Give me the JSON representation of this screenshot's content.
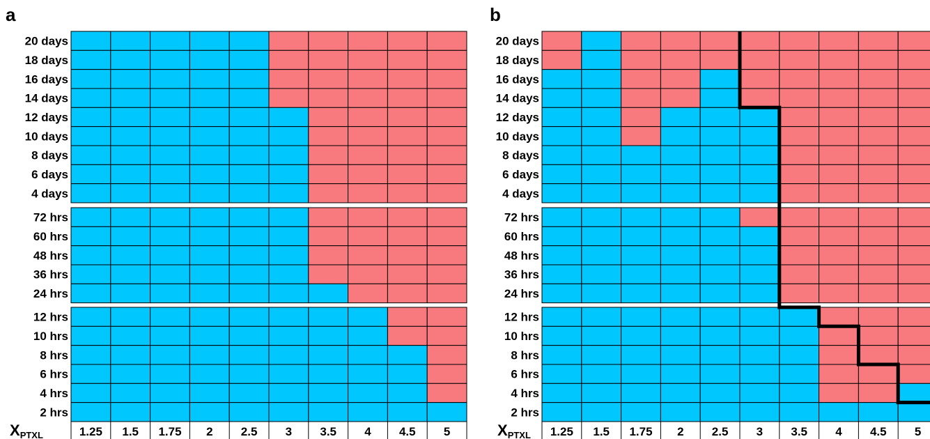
{
  "chart_data": [
    {
      "type": "heatmap",
      "panel": "a",
      "x_label_main": "X",
      "x_label_sub": "PTXL",
      "columns": [
        "1.25",
        "1.5",
        "1.75",
        "2",
        "2.5",
        "3",
        "3.5",
        "4",
        "4.5",
        "5"
      ],
      "row_groups": [
        {
          "rows": [
            "20 days",
            "18 days",
            "16 days",
            "14 days",
            "12 days",
            "10 days",
            "8 days",
            "6 days",
            "4 days"
          ]
        },
        {
          "rows": [
            "72 hrs",
            "60 hrs",
            "48 hrs",
            "36 hrs",
            "24 hrs"
          ]
        },
        {
          "rows": [
            "12 hrs",
            "10 hrs",
            "8 hrs",
            "6 hrs",
            "4 hrs",
            "2 hrs"
          ]
        }
      ],
      "category_colors": {
        "0": "#00c8ff",
        "1": "#f97a7e"
      },
      "values": [
        "0000011111",
        "0000011111",
        "0000011111",
        "0000011111",
        "0000001111",
        "0000001111",
        "0000001111",
        "0000001111",
        "0000001111",
        "0000001111",
        "0000001111",
        "0000001111",
        "0000001111",
        "0000000111",
        "0000000011",
        "0000000011",
        "0000000001",
        "0000000001",
        "0000000001",
        "0000000000"
      ]
    },
    {
      "type": "heatmap",
      "panel": "b",
      "x_label_main": "X",
      "x_label_sub": "PTXL",
      "columns": [
        "1.25",
        "1.5",
        "1.75",
        "2",
        "2.5",
        "3",
        "3.5",
        "4",
        "4.5",
        "5"
      ],
      "row_groups": [
        {
          "rows": [
            "20 days",
            "18 days",
            "16 days",
            "14 days",
            "12 days",
            "10 days",
            "8 days",
            "6 days",
            "4 days"
          ]
        },
        {
          "rows": [
            "72 hrs",
            "60 hrs",
            "48 hrs",
            "36 hrs",
            "24 hrs"
          ]
        },
        {
          "rows": [
            "12 hrs",
            "10 hrs",
            "8 hrs",
            "6 hrs",
            "4 hrs",
            "2 hrs"
          ]
        }
      ],
      "category_colors": {
        "0": "#00c8ff",
        "1": "#f97a7e"
      },
      "values": [
        "1011111111",
        "1011111111",
        "0011011111",
        "0011011111",
        "0010001111",
        "0010001111",
        "0000001111",
        "0000001111",
        "0000001111",
        "0000011111",
        "0000001111",
        "0000001111",
        "0000001111",
        "0000001111",
        "0000000111",
        "0000000111",
        "0000000111",
        "0000000111",
        "0000000110",
        "0000000000"
      ],
      "boundary_line_color": "#000000",
      "boundary_line": [
        {
          "col": 6,
          "row_start": 0,
          "row_end": 4
        },
        {
          "col": 7,
          "row_start": 4,
          "row_end": 14
        },
        {
          "col": 8,
          "row_start": 14,
          "row_end": 15
        },
        {
          "col": 9,
          "row_start": 15,
          "row_end": 17
        },
        {
          "col": 10,
          "row_start": 17,
          "row_end": 19
        }
      ]
    }
  ]
}
